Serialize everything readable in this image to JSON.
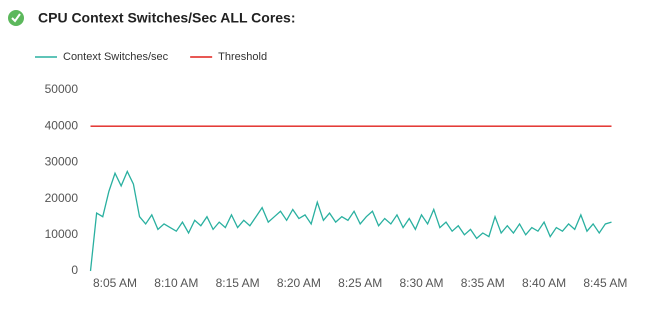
{
  "chart_data": {
    "type": "line",
    "title": "CPU Context Switches/Sec ALL Cores:",
    "series": [
      {
        "name": "Context Switches/sec",
        "color": "#2ab0a0",
        "x": [
          3,
          3.5,
          4,
          4.5,
          5,
          5.5,
          6,
          6.5,
          7,
          7.5,
          8,
          8.5,
          9,
          9.5,
          10,
          10.5,
          11,
          11.5,
          12,
          12.5,
          13,
          13.5,
          14,
          14.5,
          15,
          15.5,
          16,
          16.5,
          17,
          17.5,
          18,
          18.5,
          19,
          19.5,
          20,
          20.5,
          21,
          21.5,
          22,
          22.5,
          23,
          23.5,
          24,
          24.5,
          25,
          25.5,
          26,
          26.5,
          27,
          27.5,
          28,
          28.5,
          29,
          29.5,
          30,
          30.5,
          31,
          31.5,
          32,
          32.5,
          33,
          33.5,
          34,
          34.5,
          35,
          35.5,
          36,
          36.5,
          37,
          37.5,
          38,
          38.5,
          39,
          39.5,
          40,
          40.5,
          41,
          41.5,
          42,
          42.5,
          43,
          43.5,
          44,
          44.5,
          45,
          45.5
        ],
        "values": [
          0,
          16000,
          15000,
          22000,
          27000,
          23500,
          27500,
          24000,
          15000,
          13000,
          15500,
          11500,
          13000,
          12000,
          11000,
          13500,
          10500,
          14000,
          12500,
          15000,
          11500,
          13500,
          12000,
          15500,
          12000,
          14000,
          12500,
          15000,
          17500,
          13500,
          15000,
          16500,
          14000,
          17000,
          14500,
          15500,
          13000,
          19000,
          14000,
          16000,
          13500,
          15000,
          14000,
          16500,
          13000,
          15000,
          16500,
          12500,
          14500,
          13000,
          15500,
          12000,
          14500,
          11500,
          15500,
          13000,
          17000,
          12000,
          13500,
          11000,
          12500,
          10000,
          11500,
          9000,
          10500,
          9500,
          15000,
          10500,
          12500,
          10500,
          13000,
          10000,
          12000,
          11000,
          13500,
          9500,
          12000,
          11000,
          13000,
          11500,
          15500,
          11000,
          13000,
          10500,
          13000,
          13500
        ]
      },
      {
        "name": "Threshold",
        "color": "#e0201c",
        "x": [
          3,
          45.5
        ],
        "values": [
          40000,
          40000
        ]
      }
    ],
    "xlim": [
      3,
      45.5
    ],
    "xticks": [
      {
        "value": 5,
        "label": "8:05 AM"
      },
      {
        "value": 10,
        "label": "8:10 AM"
      },
      {
        "value": 15,
        "label": "8:15 AM"
      },
      {
        "value": 20,
        "label": "8:20 AM"
      },
      {
        "value": 25,
        "label": "8:25 AM"
      },
      {
        "value": 30,
        "label": "8:30 AM"
      },
      {
        "value": 35,
        "label": "8:35 AM"
      },
      {
        "value": 40,
        "label": "8:40 AM"
      },
      {
        "value": 45,
        "label": "8:45 AM"
      }
    ],
    "ylim": [
      0,
      50000
    ],
    "yticks": [
      0,
      10000,
      20000,
      30000,
      40000,
      50000
    ],
    "grid": false
  }
}
